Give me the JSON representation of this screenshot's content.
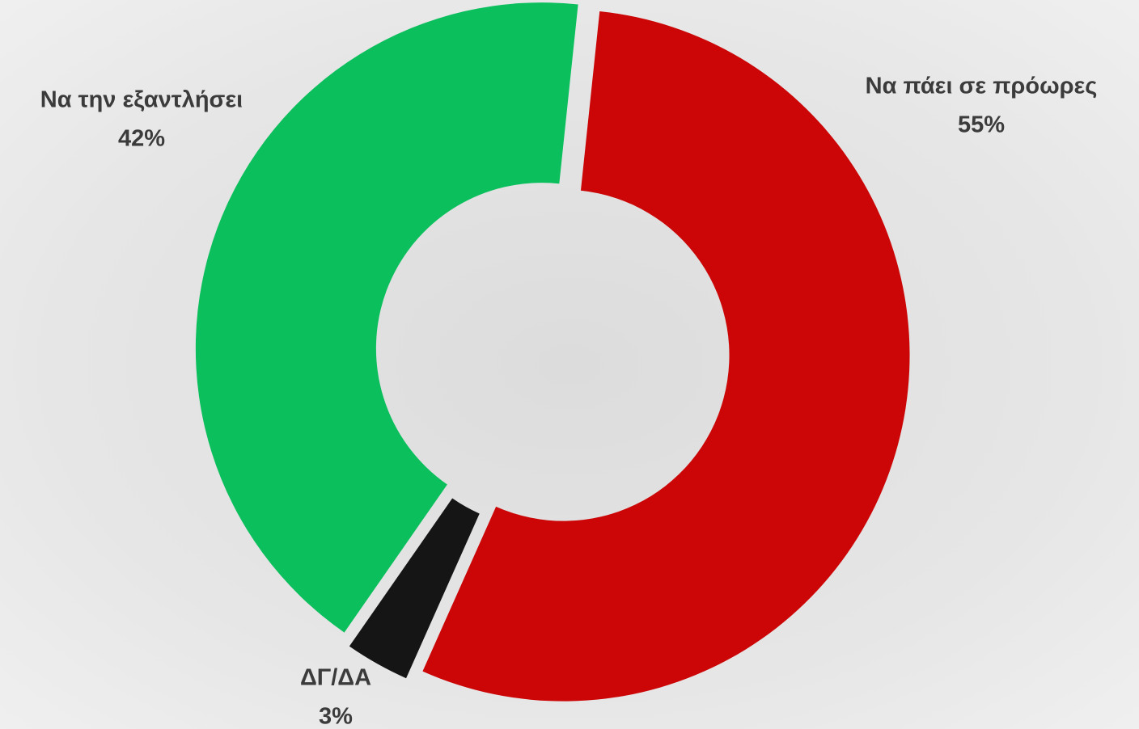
{
  "chart_data": {
    "type": "pie",
    "donut": true,
    "categories": [
      "Να πάει σε πρόωρες",
      "ΔΓ/ΔΑ",
      "Να την εξαντλήσει"
    ],
    "values": [
      55,
      3,
      42
    ],
    "value_labels": [
      "55%",
      "3%",
      "42%"
    ],
    "colors": [
      "#cc0606",
      "#151515",
      "#0abf5c"
    ]
  }
}
